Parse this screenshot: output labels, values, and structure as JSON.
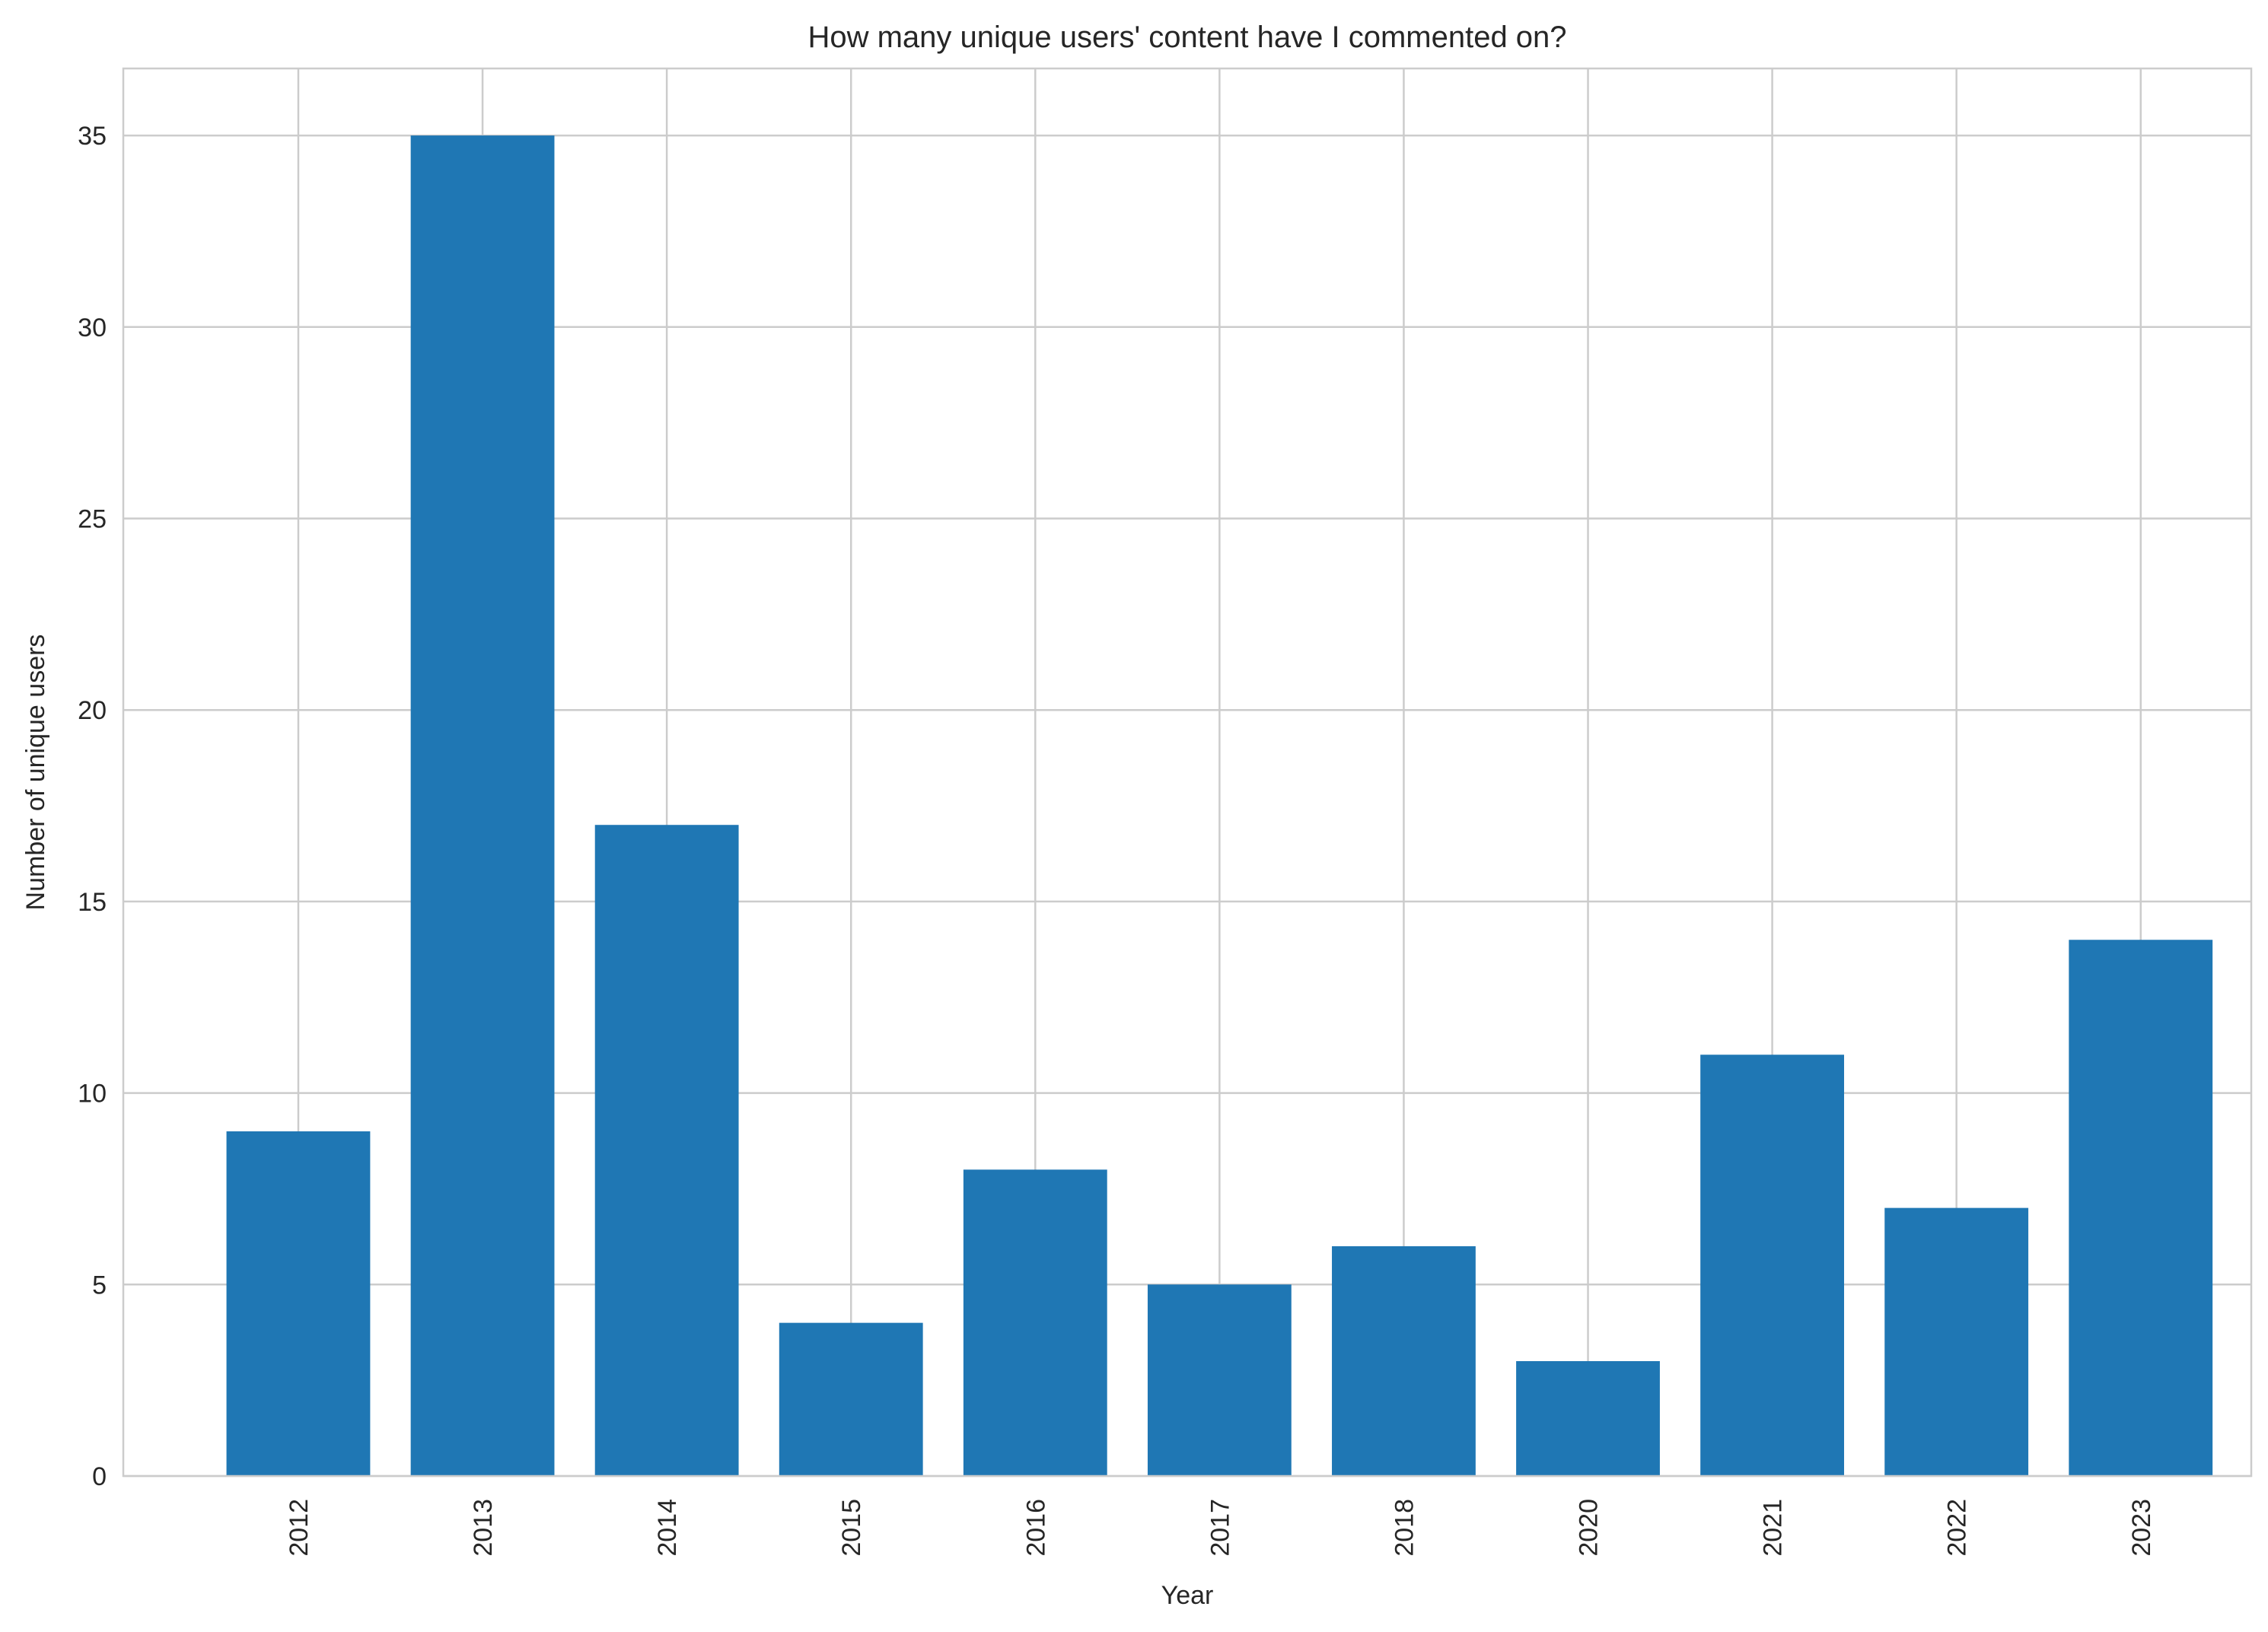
{
  "chart_data": {
    "type": "bar",
    "title": "How many unique users' content have I commented on?",
    "xlabel": "Year",
    "ylabel": "Number of unique users",
    "categories": [
      "2012",
      "2013",
      "2014",
      "2015",
      "2016",
      "2017",
      "2018",
      "2020",
      "2021",
      "2022",
      "2023"
    ],
    "values": [
      9,
      35,
      17,
      4,
      8,
      5,
      6,
      3,
      11,
      7,
      14
    ],
    "ylim": [
      0,
      36.75
    ],
    "yticks": [
      0,
      5,
      10,
      15,
      20,
      25,
      30,
      35
    ],
    "x_tick_rotation": "vertical",
    "grid": true,
    "legend": "none",
    "bar_color": "#1f77b4",
    "grid_color": "#cccccc"
  }
}
